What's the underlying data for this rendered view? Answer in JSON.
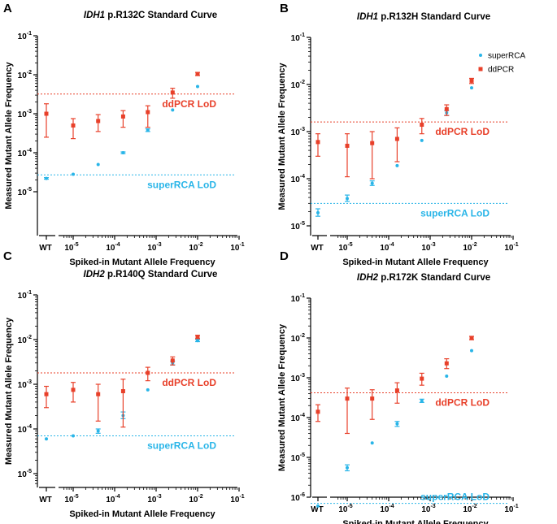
{
  "chart_data": [
    {
      "panel_label": "A",
      "type": "scatter",
      "title_gene": "IDH1",
      "title_rest": " p.R132C Standard Curve",
      "xlabel": "Spiked-in Mutant Allele Frequency",
      "ylabel": "Measured Mutant Allele Frequency",
      "xscale": "log",
      "yscale": "log",
      "xlim": [
        5e-06,
        0.1
      ],
      "ylim": [
        1e-05,
        0.1
      ],
      "wt_label": "WT",
      "x_ticks": [
        {
          "base": "10",
          "exp": "-5",
          "value": 1e-05
        },
        {
          "base": "10",
          "exp": "-4",
          "value": 0.0001
        },
        {
          "base": "10",
          "exp": "-3",
          "value": 0.001
        },
        {
          "base": "10",
          "exp": "-2",
          "value": 0.01
        },
        {
          "base": "10",
          "exp": "-1",
          "value": 0.1
        }
      ],
      "y_ticks": [
        {
          "base": "10",
          "exp": "-5",
          "value": 1e-05
        },
        {
          "base": "10",
          "exp": "-4",
          "value": 0.0001
        },
        {
          "base": "10",
          "exp": "-3",
          "value": 0.001
        },
        {
          "base": "10",
          "exp": "-2",
          "value": 0.01
        },
        {
          "base": "10",
          "exp": "-1",
          "value": 0.1
        }
      ],
      "series": [
        {
          "name": "superRCA",
          "color": "#29b5e8",
          "marker": "circle",
          "points": [
            {
              "x": "WT",
              "y": 2.2e-05,
              "lo": 2.1e-05,
              "hi": 2.3e-05
            },
            {
              "x": 1e-05,
              "y": 2.8e-05
            },
            {
              "x": 4e-05,
              "y": 5e-05
            },
            {
              "x": 0.00016,
              "y": 0.0001,
              "lo": 9.5e-05,
              "hi": 0.000105
            },
            {
              "x": 0.00063,
              "y": 0.00038,
              "lo": 0.00035,
              "hi": 0.00041
            },
            {
              "x": 0.0025,
              "y": 0.00125
            },
            {
              "x": 0.01,
              "y": 0.005
            }
          ]
        },
        {
          "name": "ddPCR",
          "color": "#e8402a",
          "marker": "square",
          "points": [
            {
              "x": "WT",
              "y": 0.001,
              "lo": 0.00025,
              "hi": 0.0018
            },
            {
              "x": 1e-05,
              "y": 0.0005,
              "lo": 0.00023,
              "hi": 0.00075
            },
            {
              "x": 4e-05,
              "y": 0.00065,
              "lo": 0.00035,
              "hi": 0.00095
            },
            {
              "x": 0.00016,
              "y": 0.00085,
              "lo": 0.00045,
              "hi": 0.0012
            },
            {
              "x": 0.00063,
              "y": 0.0011,
              "lo": 0.00045,
              "hi": 0.0016
            },
            {
              "x": 0.0025,
              "y": 0.0035,
              "lo": 0.0025,
              "hi": 0.0045
            },
            {
              "x": 0.01,
              "y": 0.0105,
              "lo": 0.0095,
              "hi": 0.0115
            }
          ]
        }
      ],
      "lods": [
        {
          "label": "ddPCR LoD",
          "y": 0.0032,
          "color": "#e8402a",
          "text_offset": "below"
        },
        {
          "label": "superRCA LoD",
          "y": 2.7e-05,
          "color": "#29b5e8",
          "text_offset": "below"
        }
      ]
    },
    {
      "panel_label": "B",
      "type": "scatter",
      "title_gene": "IDH1",
      "title_rest": " p.R132H Standard Curve",
      "xlabel": "Spiked-in Mutant Allele Frequency",
      "ylabel": "Measured Mutant Allele Frequency",
      "xscale": "log",
      "yscale": "log",
      "xlim": [
        5e-06,
        0.1
      ],
      "ylim": [
        1e-05,
        0.1
      ],
      "wt_label": "WT",
      "legend": [
        {
          "name": "superRCA",
          "color": "#29b5e8",
          "marker": "circle"
        },
        {
          "name": "ddPCR",
          "color": "#e8402a",
          "marker": "square"
        }
      ],
      "x_ticks": [
        {
          "base": "10",
          "exp": "-5",
          "value": 1e-05
        },
        {
          "base": "10",
          "exp": "-4",
          "value": 0.0001
        },
        {
          "base": "10",
          "exp": "-3",
          "value": 0.001
        },
        {
          "base": "10",
          "exp": "-2",
          "value": 0.01
        },
        {
          "base": "10",
          "exp": "-1",
          "value": 0.1
        }
      ],
      "y_ticks": [
        {
          "base": "10",
          "exp": "-5",
          "value": 1e-05
        },
        {
          "base": "10",
          "exp": "-4",
          "value": 0.0001
        },
        {
          "base": "10",
          "exp": "-3",
          "value": 0.001
        },
        {
          "base": "10",
          "exp": "-2",
          "value": 0.01
        },
        {
          "base": "10",
          "exp": "-1",
          "value": 0.1
        }
      ],
      "series": [
        {
          "name": "superRCA",
          "color": "#29b5e8",
          "marker": "circle",
          "points": [
            {
              "x": "WT",
              "y": 1.9e-05,
              "lo": 1.6e-05,
              "hi": 2.3e-05
            },
            {
              "x": 1e-05,
              "y": 3.8e-05,
              "lo": 3.3e-05,
              "hi": 4.5e-05
            },
            {
              "x": 4e-05,
              "y": 8e-05,
              "lo": 7.2e-05,
              "hi": 9e-05
            },
            {
              "x": 0.00016,
              "y": 0.00019
            },
            {
              "x": 0.00063,
              "y": 0.00065
            },
            {
              "x": 0.0025,
              "y": 0.0025,
              "lo": 0.0022,
              "hi": 0.0028
            },
            {
              "x": 0.01,
              "y": 0.0085
            }
          ]
        },
        {
          "name": "ddPCR",
          "color": "#e8402a",
          "marker": "square",
          "points": [
            {
              "x": "WT",
              "y": 0.0006,
              "lo": 0.0003,
              "hi": 0.0009
            },
            {
              "x": 1e-05,
              "y": 0.0005,
              "lo": 0.00011,
              "hi": 0.0009
            },
            {
              "x": 4e-05,
              "y": 0.00057,
              "lo": 0.0001,
              "hi": 0.001
            },
            {
              "x": 0.00016,
              "y": 0.0007,
              "lo": 0.00023,
              "hi": 0.0012
            },
            {
              "x": 0.00063,
              "y": 0.0014,
              "lo": 0.0009,
              "hi": 0.0019
            },
            {
              "x": 0.0025,
              "y": 0.003,
              "lo": 0.0022,
              "hi": 0.0037
            },
            {
              "x": 0.01,
              "y": 0.012,
              "lo": 0.0105,
              "hi": 0.0135
            }
          ]
        }
      ],
      "lods": [
        {
          "label": "ddPCR LoD",
          "y": 0.0016,
          "color": "#e8402a",
          "text_offset": "below"
        },
        {
          "label": "superRCA LoD",
          "y": 3e-05,
          "color": "#29b5e8",
          "text_offset": "below"
        }
      ]
    },
    {
      "panel_label": "C",
      "type": "scatter",
      "title_gene": "IDH2",
      "title_rest": " p.R140Q Standard Curve",
      "xlabel": "Spiked-in Mutant Allele Frequency",
      "ylabel": "Measured Mutant Allele Frequency",
      "xscale": "log",
      "yscale": "log",
      "xlim": [
        5e-06,
        0.1
      ],
      "ylim": [
        5e-06,
        0.1
      ],
      "wt_label": "WT",
      "x_ticks": [
        {
          "base": "10",
          "exp": "-5",
          "value": 1e-05
        },
        {
          "base": "10",
          "exp": "-4",
          "value": 0.0001
        },
        {
          "base": "10",
          "exp": "-3",
          "value": 0.001
        },
        {
          "base": "10",
          "exp": "-2",
          "value": 0.01
        },
        {
          "base": "10",
          "exp": "-1",
          "value": 0.1
        }
      ],
      "y_ticks": [
        {
          "base": "10",
          "exp": "-5",
          "value": 1e-05
        },
        {
          "base": "10",
          "exp": "-4",
          "value": 0.0001
        },
        {
          "base": "10",
          "exp": "-3",
          "value": 0.001
        },
        {
          "base": "10",
          "exp": "-2",
          "value": 0.01
        },
        {
          "base": "10",
          "exp": "-1",
          "value": 0.1
        }
      ],
      "series": [
        {
          "name": "superRCA",
          "color": "#29b5e8",
          "marker": "circle",
          "points": [
            {
              "x": "WT",
              "y": 6e-05
            },
            {
              "x": 1e-05,
              "y": 7e-05
            },
            {
              "x": 4e-05,
              "y": 9e-05,
              "lo": 8e-05,
              "hi": 0.0001
            },
            {
              "x": 0.00016,
              "y": 0.0002,
              "lo": 0.00017,
              "hi": 0.00024
            },
            {
              "x": 0.00063,
              "y": 0.00075
            },
            {
              "x": 0.0025,
              "y": 0.003,
              "lo": 0.0027,
              "hi": 0.0033
            },
            {
              "x": 0.01,
              "y": 0.0095,
              "lo": 0.009,
              "hi": 0.01
            }
          ]
        },
        {
          "name": "ddPCR",
          "color": "#e8402a",
          "marker": "square",
          "points": [
            {
              "x": "WT",
              "y": 0.0006,
              "lo": 0.0003,
              "hi": 0.0009
            },
            {
              "x": 1e-05,
              "y": 0.00075,
              "lo": 0.0004,
              "hi": 0.0011
            },
            {
              "x": 4e-05,
              "y": 0.0006,
              "lo": 0.00015,
              "hi": 0.001
            },
            {
              "x": 0.00016,
              "y": 0.0007,
              "lo": 0.00011,
              "hi": 0.0013
            },
            {
              "x": 0.00063,
              "y": 0.0018,
              "lo": 0.0012,
              "hi": 0.0024
            },
            {
              "x": 0.0025,
              "y": 0.0034,
              "lo": 0.0027,
              "hi": 0.0041
            },
            {
              "x": 0.01,
              "y": 0.0115,
              "lo": 0.0105,
              "hi": 0.0125
            }
          ]
        }
      ],
      "lods": [
        {
          "label": "ddPCR LoD",
          "y": 0.0018,
          "color": "#e8402a",
          "text_offset": "below"
        },
        {
          "label": "superRCA LoD",
          "y": 7e-05,
          "color": "#29b5e8",
          "text_offset": "below"
        }
      ]
    },
    {
      "panel_label": "D",
      "type": "scatter",
      "title_gene": "IDH2",
      "title_rest": " p.R172K Standard Curve",
      "xlabel": "Spiked-in Mutant Allele Frequency",
      "ylabel": "Measured Mutant Allele Frequency",
      "xscale": "log",
      "yscale": "log",
      "xlim": [
        5e-06,
        0.1
      ],
      "ylim": [
        5e-07,
        0.1
      ],
      "wt_label": "WT",
      "x_ticks": [
        {
          "base": "10",
          "exp": "-5",
          "value": 1e-05
        },
        {
          "base": "10",
          "exp": "-4",
          "value": 0.0001
        },
        {
          "base": "10",
          "exp": "-3",
          "value": 0.001
        },
        {
          "base": "10",
          "exp": "-2",
          "value": 0.01
        },
        {
          "base": "10",
          "exp": "-1",
          "value": 0.1
        }
      ],
      "y_ticks": [
        {
          "base": "10",
          "exp": "-6",
          "value": 1e-06
        },
        {
          "base": "10",
          "exp": "-5",
          "value": 1e-05
        },
        {
          "base": "10",
          "exp": "-4",
          "value": 0.0001
        },
        {
          "base": "10",
          "exp": "-3",
          "value": 0.001
        },
        {
          "base": "10",
          "exp": "-2",
          "value": 0.01
        },
        {
          "base": "10",
          "exp": "-1",
          "value": 0.1
        }
      ],
      "series": [
        {
          "name": "superRCA",
          "color": "#29b5e8",
          "marker": "circle",
          "points": [
            {
              "x": "WT",
              "y": 6e-07
            },
            {
              "x": 1e-05,
              "y": 5.5e-06,
              "lo": 4.6e-06,
              "hi": 6.5e-06
            },
            {
              "x": 4e-05,
              "y": 2.3e-05
            },
            {
              "x": 0.00016,
              "y": 7e-05,
              "lo": 6e-05,
              "hi": 8e-05
            },
            {
              "x": 0.00063,
              "y": 0.00026,
              "lo": 0.00024,
              "hi": 0.00029
            },
            {
              "x": 0.0025,
              "y": 0.0011
            },
            {
              "x": 0.01,
              "y": 0.0048
            }
          ]
        },
        {
          "name": "ddPCR",
          "color": "#e8402a",
          "marker": "square",
          "points": [
            {
              "x": "WT",
              "y": 0.00014,
              "lo": 8e-05,
              "hi": 0.00021
            },
            {
              "x": 1e-05,
              "y": 0.0003,
              "lo": 4e-05,
              "hi": 0.00055
            },
            {
              "x": 4e-05,
              "y": 0.0003,
              "lo": 9e-05,
              "hi": 0.0005
            },
            {
              "x": 0.00016,
              "y": 0.00048,
              "lo": 0.00023,
              "hi": 0.00075
            },
            {
              "x": 0.00063,
              "y": 0.00095,
              "lo": 0.00065,
              "hi": 0.0013
            },
            {
              "x": 0.0025,
              "y": 0.0023,
              "lo": 0.0017,
              "hi": 0.003
            },
            {
              "x": 0.01,
              "y": 0.01,
              "lo": 0.009,
              "hi": 0.011
            }
          ]
        }
      ],
      "lods": [
        {
          "label": "ddPCR LoD",
          "y": 0.00042,
          "color": "#e8402a",
          "text_offset": "below"
        },
        {
          "label": "superRCA LoD",
          "y": 7e-07,
          "color": "#29b5e8",
          "text_offset": "above"
        }
      ]
    }
  ]
}
